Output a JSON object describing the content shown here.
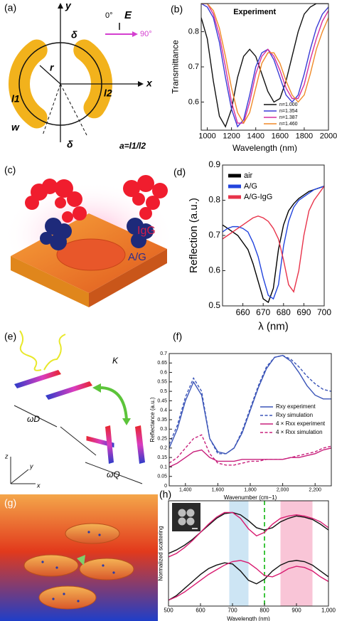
{
  "figure": {
    "panel_labels": [
      "(a)",
      "(b)",
      "(c)",
      "(d)",
      "(e)",
      "(f)",
      "(g)",
      "(h)"
    ],
    "a_labels": {
      "y": "y",
      "x": "x",
      "angle0": "0°",
      "field": "E",
      "angle90": "90°",
      "delta_top": "δ",
      "delta_bottom": "δ",
      "r": "r",
      "l1": "l1",
      "l2": "l2",
      "w": "w",
      "ratio": "a=l1/l2"
    },
    "c_labels": {
      "igg": "IgG",
      "ag": "A/G"
    },
    "e_labels": {
      "k": "K",
      "omega_d": "ωD",
      "omega_q": "ωQ",
      "z": "z",
      "y": "y",
      "x": "x"
    }
  },
  "chart_data": [
    {
      "type": "line",
      "title": "Experiment",
      "xlabel": "Wavelength (nm)",
      "ylabel": "Transmittance",
      "x": [
        950,
        1000,
        1050,
        1100,
        1150,
        1200,
        1250,
        1300,
        1350,
        1400,
        1450,
        1500,
        1550,
        1600,
        1650,
        1700,
        1750,
        1800,
        1850,
        1900,
        1950,
        2000
      ],
      "xlim": [
        950,
        2000
      ],
      "ylim": [
        0.52,
        0.88
      ],
      "xticks": [
        1000,
        1200,
        1400,
        1600,
        1800,
        2000
      ],
      "yticks": [
        0.6,
        0.7,
        0.8
      ],
      "legend": "lower right",
      "series": [
        {
          "name": "n=1.000",
          "color": "#111111",
          "values": [
            0.84,
            0.78,
            0.66,
            0.56,
            0.53,
            0.58,
            0.67,
            0.73,
            0.75,
            0.73,
            0.68,
            0.63,
            0.6,
            0.61,
            0.66,
            0.73,
            0.8,
            0.85,
            0.87,
            0.88,
            0.88,
            0.88
          ]
        },
        {
          "name": "n=1.354",
          "color": "#3a3ad6",
          "values": [
            0.88,
            0.87,
            0.84,
            0.77,
            0.67,
            0.58,
            0.53,
            0.55,
            0.62,
            0.7,
            0.74,
            0.75,
            0.72,
            0.67,
            0.62,
            0.6,
            0.62,
            0.68,
            0.75,
            0.81,
            0.85,
            0.87
          ]
        },
        {
          "name": "n=1.387",
          "color": "#d62f9e",
          "values": [
            0.88,
            0.88,
            0.85,
            0.79,
            0.7,
            0.6,
            0.54,
            0.54,
            0.6,
            0.68,
            0.73,
            0.75,
            0.73,
            0.69,
            0.64,
            0.61,
            0.61,
            0.65,
            0.72,
            0.78,
            0.83,
            0.86
          ]
        },
        {
          "name": "n=1.460",
          "color": "#f08a28",
          "values": [
            0.88,
            0.88,
            0.86,
            0.81,
            0.73,
            0.64,
            0.57,
            0.54,
            0.57,
            0.64,
            0.71,
            0.74,
            0.74,
            0.71,
            0.66,
            0.62,
            0.6,
            0.62,
            0.68,
            0.75,
            0.8,
            0.84
          ]
        }
      ]
    },
    {
      "type": "line",
      "xlabel": "λ (nm)",
      "ylabel": "Reflection (a.u.)",
      "x": [
        650,
        652.5,
        655,
        657.5,
        660,
        662.5,
        665,
        667.5,
        670,
        672.5,
        675,
        677.5,
        680,
        682.5,
        685,
        687.5,
        690,
        692.5,
        695,
        697.5,
        700
      ],
      "xlim": [
        650,
        700
      ],
      "ylim": [
        0.5,
        0.9
      ],
      "xticks": [
        660,
        670,
        680,
        690,
        700
      ],
      "yticks": [
        0.5,
        0.6,
        0.7,
        0.8,
        0.9
      ],
      "legend": "upper left",
      "series": [
        {
          "name": "air",
          "color": "#000000",
          "values": [
            0.73,
            0.72,
            0.71,
            0.7,
            0.68,
            0.66,
            0.62,
            0.57,
            0.52,
            0.51,
            0.55,
            0.66,
            0.73,
            0.77,
            0.79,
            0.805,
            0.815,
            0.825,
            0.83,
            0.835,
            0.84
          ]
        },
        {
          "name": "A/G",
          "color": "#2244dd",
          "values": [
            0.71,
            0.72,
            0.725,
            0.725,
            0.72,
            0.71,
            0.68,
            0.64,
            0.58,
            0.53,
            0.52,
            0.56,
            0.67,
            0.74,
            0.78,
            0.8,
            0.81,
            0.82,
            0.83,
            0.835,
            0.84
          ]
        },
        {
          "name": "A/G-IgG",
          "color": "#e8334a",
          "values": [
            0.69,
            0.7,
            0.71,
            0.72,
            0.73,
            0.74,
            0.75,
            0.755,
            0.75,
            0.74,
            0.72,
            0.69,
            0.63,
            0.56,
            0.54,
            0.6,
            0.7,
            0.77,
            0.8,
            0.82,
            0.84
          ]
        }
      ]
    },
    {
      "type": "line",
      "xlabel": "Wavenumber (cm−1)",
      "ylabel": "Reflectance (a.u.)",
      "x": [
        1300,
        1350,
        1400,
        1450,
        1500,
        1550,
        1600,
        1650,
        1700,
        1750,
        1800,
        1850,
        1900,
        1950,
        2000,
        2050,
        2100,
        2150,
        2200,
        2250,
        2300
      ],
      "xlim": [
        1300,
        2300
      ],
      "ylim": [
        0,
        0.7
      ],
      "xticks": [
        {
          "value": 1400,
          "label": "1,400"
        },
        {
          "value": 1600,
          "label": "1,600"
        },
        {
          "value": 1800,
          "label": "1,800"
        },
        {
          "value": 2000,
          "label": "2,000"
        },
        {
          "value": 2200,
          "label": "2,200"
        }
      ],
      "yticks": [
        0,
        0.05,
        0.1,
        0.15,
        0.2,
        0.25,
        0.3,
        0.35,
        0.4,
        0.45,
        0.5,
        0.55,
        0.6,
        0.65,
        0.7
      ],
      "legend": "center right",
      "series": [
        {
          "name": "Rxy experiment",
          "color": "#3b55b8",
          "values": [
            0.2,
            0.3,
            0.45,
            0.55,
            0.48,
            0.25,
            0.18,
            0.17,
            0.2,
            0.28,
            0.4,
            0.52,
            0.62,
            0.68,
            0.69,
            0.66,
            0.6,
            0.53,
            0.48,
            0.46,
            0.46
          ]
        },
        {
          "name": "Rxy simulation",
          "color": "#3b55b8",
          "dashed": true,
          "values": [
            0.22,
            0.32,
            0.47,
            0.57,
            0.5,
            0.25,
            0.17,
            0.17,
            0.2,
            0.29,
            0.41,
            0.53,
            0.63,
            0.68,
            0.69,
            0.67,
            0.63,
            0.58,
            0.54,
            0.51,
            0.5
          ]
        },
        {
          "name": "4 × Rxx experiment",
          "color": "#c8207c",
          "values": [
            0.1,
            0.12,
            0.15,
            0.18,
            0.19,
            0.15,
            0.13,
            0.13,
            0.13,
            0.14,
            0.14,
            0.14,
            0.14,
            0.14,
            0.14,
            0.15,
            0.15,
            0.16,
            0.17,
            0.19,
            0.2
          ]
        },
        {
          "name": "4 × Rxx simulation",
          "color": "#c8207c",
          "dashed": true,
          "values": [
            0.12,
            0.15,
            0.2,
            0.25,
            0.27,
            0.17,
            0.12,
            0.11,
            0.11,
            0.12,
            0.13,
            0.13,
            0.14,
            0.14,
            0.14,
            0.15,
            0.16,
            0.17,
            0.18,
            0.2,
            0.21
          ]
        }
      ]
    },
    {
      "type": "line",
      "xlabel": "Wavelength (nm)",
      "ylabel": "Normalized scattering",
      "x": [
        500,
        525,
        550,
        575,
        600,
        625,
        650,
        675,
        700,
        725,
        750,
        775,
        800,
        825,
        850,
        875,
        900,
        925,
        950,
        975,
        1000
      ],
      "xlim": [
        500,
        1000
      ],
      "ylim": [
        0.05,
        0.95
      ],
      "xticks": [
        500,
        600,
        700,
        800,
        900,
        {
          "value": 1000,
          "label": "1,000"
        }
      ],
      "shaded_ranges": [
        {
          "range": [
            690,
            750
          ],
          "color": "#cde5f4"
        },
        {
          "range": [
            850,
            950
          ],
          "color": "#f9c5d7"
        }
      ],
      "marker_line": {
        "x": 800,
        "color": "#3ec43e"
      },
      "series": [
        {
          "color": "#111111",
          "values": [
            0.5,
            0.53,
            0.57,
            0.62,
            0.68,
            0.74,
            0.8,
            0.84,
            0.85,
            0.83,
            0.78,
            0.72,
            0.7,
            0.72,
            0.77,
            0.8,
            0.82,
            0.81,
            0.79,
            0.75,
            0.7
          ]
        },
        {
          "color": "#d81b70",
          "values": [
            0.47,
            0.5,
            0.55,
            0.61,
            0.68,
            0.75,
            0.81,
            0.85,
            0.85,
            0.8,
            0.71,
            0.65,
            0.68,
            0.75,
            0.8,
            0.82,
            0.83,
            0.82,
            0.8,
            0.77,
            0.72
          ]
        },
        {
          "color": "#111111",
          "values": [
            0.1,
            0.14,
            0.2,
            0.26,
            0.32,
            0.37,
            0.4,
            0.42,
            0.41,
            0.35,
            0.27,
            0.24,
            0.28,
            0.35,
            0.4,
            0.43,
            0.44,
            0.43,
            0.4,
            0.35,
            0.3
          ]
        },
        {
          "color": "#d81b70",
          "values": [
            0.1,
            0.13,
            0.17,
            0.22,
            0.27,
            0.32,
            0.36,
            0.4,
            0.43,
            0.44,
            0.42,
            0.37,
            0.31,
            0.3,
            0.33,
            0.37,
            0.39,
            0.38,
            0.35,
            0.3,
            0.26
          ]
        }
      ]
    }
  ]
}
